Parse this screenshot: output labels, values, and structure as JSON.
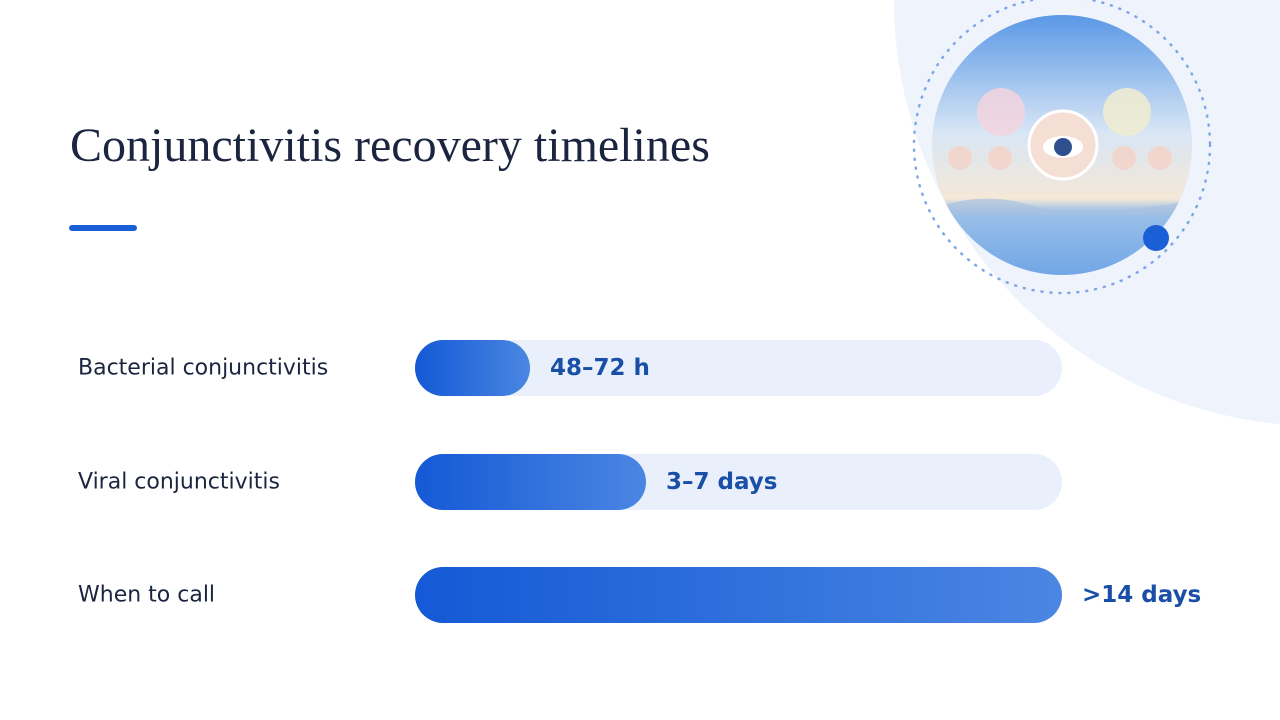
{
  "title": "Conjunctivitis recovery timelines",
  "rows": [
    {
      "label": "Bacterial conjunctivitis",
      "value": "48–72 h"
    },
    {
      "label": "Viral conjunctivitis",
      "value": "3–7 days"
    },
    {
      "label": "When to call",
      "value": ">14 days"
    }
  ]
}
